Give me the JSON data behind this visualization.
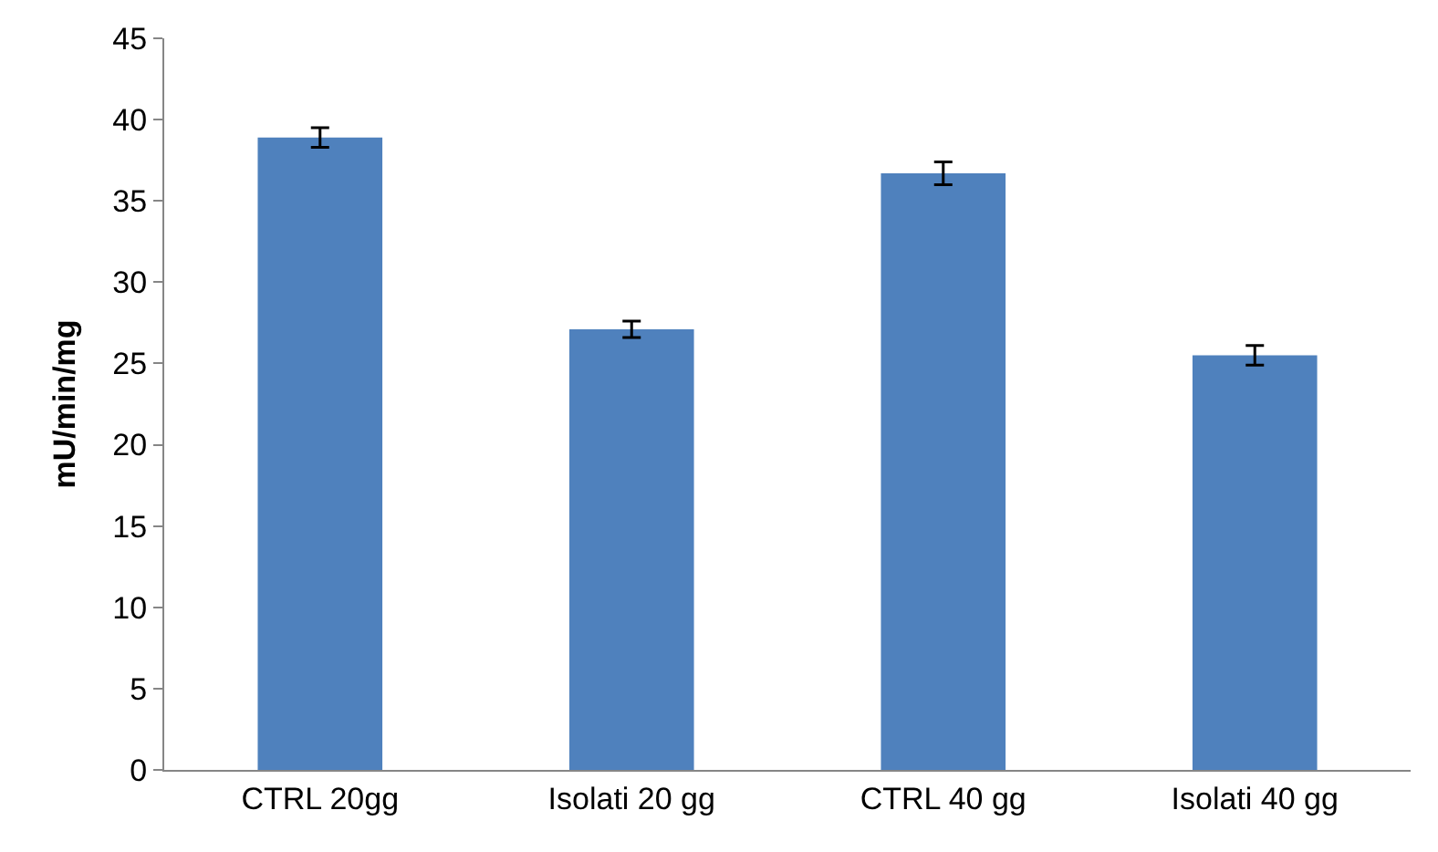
{
  "chart_data": {
    "type": "bar",
    "ylabel": "mU/min/mg",
    "categories": [
      "CTRL 20gg",
      "Isolati 20 gg",
      "CTRL 40 gg",
      "Isolati 40 gg"
    ],
    "values": [
      38.9,
      27.1,
      36.7,
      25.5
    ],
    "errors": [
      0.6,
      0.5,
      0.7,
      0.6
    ],
    "color": "#4f81bd",
    "ylim": [
      0,
      45
    ],
    "yticks": [
      0,
      5,
      10,
      15,
      20,
      25,
      30,
      35,
      40,
      45
    ]
  }
}
